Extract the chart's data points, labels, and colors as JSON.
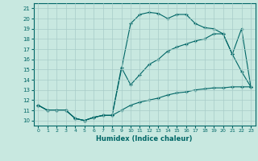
{
  "xlabel": "Humidex (Indice chaleur)",
  "ylabel": "",
  "bg_color": "#c8e8e0",
  "grid_color": "#a8ccc8",
  "line_color": "#006666",
  "xlim": [
    -0.5,
    23.5
  ],
  "ylim": [
    9.5,
    21.5
  ],
  "xticks": [
    0,
    1,
    2,
    3,
    4,
    5,
    6,
    7,
    8,
    9,
    10,
    11,
    12,
    13,
    14,
    15,
    16,
    17,
    18,
    19,
    20,
    21,
    22,
    23
  ],
  "yticks": [
    10,
    11,
    12,
    13,
    14,
    15,
    16,
    17,
    18,
    19,
    20,
    21
  ],
  "line1_x": [
    0,
    1,
    2,
    3,
    4,
    5,
    6,
    7,
    8,
    10,
    11,
    12,
    13,
    14,
    15,
    16,
    17,
    18,
    19,
    20,
    21,
    22,
    23
  ],
  "line1_y": [
    11.5,
    11.0,
    11.0,
    11.0,
    10.2,
    10.0,
    10.3,
    10.5,
    10.5,
    19.5,
    20.4,
    20.6,
    20.5,
    20.0,
    20.4,
    20.4,
    19.5,
    19.1,
    19.0,
    18.5,
    16.5,
    19.0,
    13.3
  ],
  "line2_x": [
    0,
    1,
    2,
    3,
    4,
    5,
    6,
    7,
    8,
    9,
    10,
    11,
    12,
    13,
    14,
    15,
    16,
    17,
    18,
    19,
    20,
    21,
    22,
    23
  ],
  "line2_y": [
    11.5,
    11.0,
    11.0,
    11.0,
    10.2,
    10.0,
    10.3,
    10.5,
    10.5,
    15.2,
    13.5,
    14.5,
    15.5,
    16.0,
    16.8,
    17.2,
    17.5,
    17.8,
    18.0,
    18.5,
    18.5,
    16.5,
    14.8,
    13.3
  ],
  "line3_x": [
    0,
    1,
    2,
    3,
    4,
    5,
    6,
    7,
    8,
    9,
    10,
    11,
    12,
    13,
    14,
    15,
    16,
    17,
    18,
    19,
    20,
    21,
    22,
    23
  ],
  "line3_y": [
    11.5,
    11.0,
    11.0,
    11.0,
    10.2,
    10.0,
    10.3,
    10.5,
    10.5,
    11.0,
    11.5,
    11.8,
    12.0,
    12.2,
    12.5,
    12.7,
    12.8,
    13.0,
    13.1,
    13.2,
    13.2,
    13.3,
    13.3,
    13.3
  ]
}
